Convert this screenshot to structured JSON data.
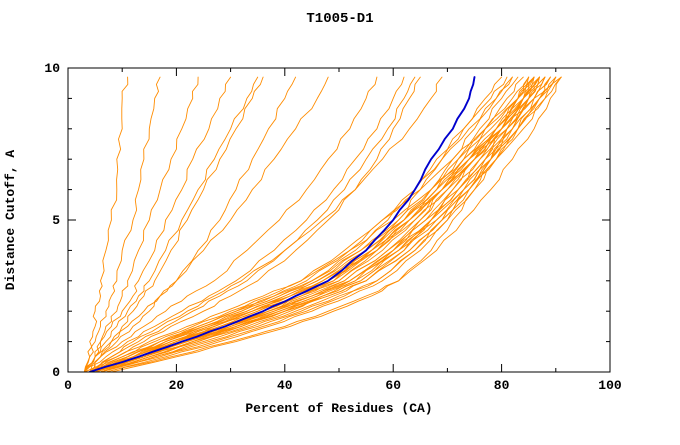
{
  "chart_data": {
    "type": "line",
    "title": "T1005-D1",
    "xlabel": "Percent of Residues (CA)",
    "ylabel": "Distance Cutoff, A",
    "xlim": [
      0,
      100
    ],
    "ylim": [
      0,
      10
    ],
    "x_major_ticks": [
      0,
      20,
      40,
      60,
      80,
      100
    ],
    "x_minor_ticks": [
      10,
      30,
      50,
      70,
      90
    ],
    "y_major_ticks": [
      0,
      5,
      10
    ],
    "y_minor_ticks": [
      1,
      2,
      3,
      4,
      6,
      7,
      8,
      9
    ],
    "grid": false,
    "legend": "none",
    "colors": {
      "models": "#ff8c00",
      "highlight": "#0000cd",
      "axis": "#000000"
    },
    "y_samples": [
      0,
      0.5,
      1,
      1.5,
      2,
      2.5,
      3,
      4,
      5,
      6,
      7,
      8,
      9,
      9.7
    ],
    "highlight_series": {
      "name": "reference-model",
      "color": "#0000cd",
      "xs": [
        4,
        13,
        21,
        29,
        36,
        42,
        48,
        55,
        60,
        64,
        67,
        71,
        74,
        75
      ]
    },
    "model_series_color": "#ff8c00",
    "model_series": [
      [
        5,
        14,
        22,
        30,
        37,
        43,
        49,
        56,
        61,
        65,
        69,
        73,
        77,
        80
      ],
      [
        4,
        12,
        20,
        28,
        35,
        42,
        48,
        56,
        62,
        67,
        71,
        75,
        79,
        82
      ],
      [
        6,
        15,
        24,
        33,
        41,
        47,
        53,
        60,
        65,
        69,
        73,
        77,
        81,
        84
      ],
      [
        3,
        10,
        17,
        25,
        32,
        39,
        45,
        53,
        59,
        64,
        68,
        73,
        78,
        81
      ],
      [
        5,
        13,
        21,
        29,
        36,
        43,
        50,
        58,
        64,
        69,
        74,
        79,
        84,
        87
      ],
      [
        4,
        11,
        18,
        26,
        34,
        41,
        47,
        55,
        62,
        68,
        73,
        78,
        83,
        86
      ],
      [
        6,
        16,
        25,
        34,
        42,
        49,
        55,
        62,
        67,
        71,
        75,
        79,
        83,
        85
      ],
      [
        5,
        14,
        23,
        31,
        39,
        46,
        52,
        60,
        66,
        71,
        76,
        81,
        86,
        89
      ],
      [
        4,
        12,
        19,
        27,
        35,
        42,
        49,
        57,
        63,
        69,
        74,
        80,
        86,
        91
      ],
      [
        5,
        13,
        20,
        28,
        36,
        43,
        50,
        57,
        63,
        68,
        72,
        76,
        80,
        83
      ],
      [
        6,
        15,
        23,
        32,
        40,
        47,
        54,
        61,
        67,
        72,
        76,
        80,
        84,
        87
      ],
      [
        4,
        11,
        17,
        24,
        31,
        38,
        44,
        52,
        58,
        64,
        69,
        74,
        79,
        82
      ],
      [
        5,
        12,
        19,
        26,
        33,
        40,
        46,
        54,
        61,
        67,
        72,
        77,
        82,
        85
      ],
      [
        6,
        14,
        22,
        30,
        38,
        45,
        51,
        59,
        65,
        70,
        75,
        80,
        85,
        88
      ],
      [
        5,
        13,
        21,
        30,
        38,
        46,
        53,
        61,
        67,
        72,
        77,
        82,
        87,
        90
      ],
      [
        4,
        10,
        16,
        23,
        30,
        37,
        43,
        51,
        58,
        65,
        71,
        77,
        83,
        86
      ],
      [
        5,
        12,
        18,
        25,
        32,
        39,
        46,
        55,
        62,
        68,
        74,
        80,
        85,
        88
      ],
      [
        6,
        15,
        24,
        32,
        40,
        48,
        55,
        63,
        69,
        74,
        78,
        82,
        85,
        87
      ],
      [
        4,
        11,
        18,
        25,
        33,
        40,
        47,
        56,
        63,
        69,
        75,
        81,
        86,
        89
      ],
      [
        5,
        14,
        22,
        31,
        39,
        47,
        54,
        62,
        68,
        73,
        78,
        83,
        87,
        90
      ],
      [
        3,
        9,
        15,
        22,
        29,
        36,
        43,
        52,
        60,
        67,
        73,
        79,
        84,
        87
      ],
      [
        5,
        13,
        21,
        29,
        37,
        45,
        52,
        60,
        67,
        73,
        78,
        83,
        88,
        91
      ],
      [
        4,
        12,
        20,
        29,
        37,
        45,
        52,
        61,
        68,
        74,
        79,
        84,
        88,
        90
      ],
      [
        6,
        16,
        26,
        35,
        43,
        50,
        57,
        64,
        70,
        75,
        79,
        83,
        86,
        88
      ],
      [
        4,
        8,
        13,
        18,
        23,
        28,
        33,
        40,
        46,
        51,
        55,
        59,
        62,
        64
      ],
      [
        3,
        7,
        11,
        16,
        21,
        26,
        31,
        38,
        44,
        49,
        53,
        57,
        60,
        62
      ],
      [
        4,
        9,
        14,
        19,
        25,
        30,
        35,
        42,
        48,
        53,
        57,
        60,
        63,
        65
      ],
      [
        3,
        6,
        10,
        14,
        18,
        22,
        27,
        33,
        39,
        44,
        48,
        52,
        55,
        57
      ],
      [
        4,
        8,
        12,
        17,
        22,
        27,
        32,
        40,
        47,
        53,
        58,
        63,
        67,
        69
      ],
      [
        3,
        4,
        4,
        5,
        5,
        6,
        6,
        7,
        8,
        9,
        9,
        10,
        10,
        11
      ],
      [
        3,
        4,
        5,
        6,
        7,
        8,
        9,
        10,
        12,
        13,
        14,
        15,
        16,
        17
      ],
      [
        4,
        5,
        6,
        7,
        9,
        10,
        11,
        13,
        15,
        17,
        19,
        21,
        23,
        24
      ],
      [
        3,
        5,
        6,
        8,
        10,
        12,
        13,
        16,
        18,
        21,
        23,
        26,
        28,
        30
      ],
      [
        4,
        6,
        8,
        10,
        12,
        14,
        16,
        19,
        22,
        25,
        28,
        31,
        34,
        36
      ],
      [
        3,
        5,
        7,
        9,
        11,
        13,
        15,
        18,
        21,
        24,
        27,
        30,
        33,
        35
      ],
      [
        4,
        6,
        9,
        12,
        15,
        17,
        20,
        24,
        28,
        31,
        34,
        37,
        40,
        42
      ],
      [
        3,
        5,
        8,
        11,
        14,
        17,
        20,
        25,
        30,
        34,
        38,
        42,
        46,
        48
      ],
      [
        5,
        13,
        20,
        27,
        34,
        41,
        48,
        56,
        63,
        69,
        74,
        79,
        83,
        86
      ],
      [
        4,
        12,
        19,
        27,
        34,
        41,
        48,
        57,
        64,
        70,
        75,
        80,
        84,
        87
      ],
      [
        6,
        14,
        21,
        29,
        37,
        44,
        51,
        59,
        66,
        72,
        77,
        81,
        85,
        88
      ],
      [
        5,
        11,
        17,
        24,
        31,
        38,
        45,
        54,
        62,
        69,
        75,
        80,
        84,
        86
      ],
      [
        4,
        13,
        22,
        31,
        40,
        48,
        55,
        63,
        69,
        74,
        79,
        83,
        87,
        89
      ],
      [
        7,
        18,
        28,
        37,
        45,
        52,
        58,
        65,
        70,
        74,
        78,
        82,
        85,
        87
      ],
      [
        8,
        20,
        31,
        41,
        49,
        56,
        61,
        67,
        71,
        75,
        78,
        81,
        84,
        86
      ],
      [
        6,
        17,
        27,
        36,
        44,
        51,
        57,
        64,
        69,
        73,
        77,
        80,
        83,
        85
      ],
      [
        7,
        19,
        30,
        40,
        48,
        55,
        61,
        68,
        73,
        78,
        82,
        86,
        89,
        91
      ]
    ]
  }
}
